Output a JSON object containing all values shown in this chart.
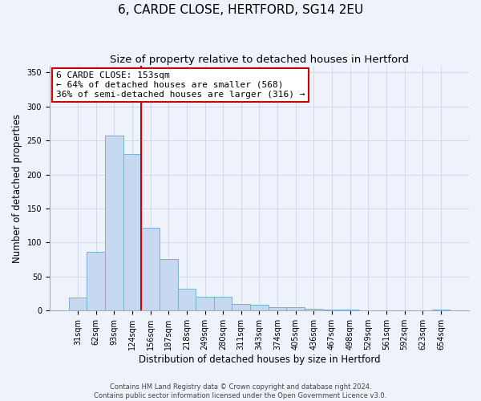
{
  "title": "6, CARDE CLOSE, HERTFORD, SG14 2EU",
  "subtitle": "Size of property relative to detached houses in Hertford",
  "xlabel": "Distribution of detached houses by size in Hertford",
  "ylabel": "Number of detached properties",
  "categories": [
    "31sqm",
    "62sqm",
    "93sqm",
    "124sqm",
    "156sqm",
    "187sqm",
    "218sqm",
    "249sqm",
    "280sqm",
    "311sqm",
    "343sqm",
    "374sqm",
    "405sqm",
    "436sqm",
    "467sqm",
    "498sqm",
    "529sqm",
    "561sqm",
    "592sqm",
    "623sqm",
    "654sqm"
  ],
  "values": [
    19,
    86,
    257,
    230,
    122,
    76,
    32,
    20,
    20,
    10,
    9,
    5,
    5,
    3,
    2,
    2,
    0,
    0,
    0,
    0,
    2
  ],
  "bar_color": "#c6d9f0",
  "bar_edge_color": "#7bafd4",
  "vline_color": "#cc0000",
  "annotation_title": "6 CARDE CLOSE: 153sqm",
  "annotation_line1": "← 64% of detached houses are smaller (568)",
  "annotation_line2": "36% of semi-detached houses are larger (316) →",
  "annotation_box_facecolor": "#ffffff",
  "annotation_box_edgecolor": "#cc0000",
  "ylim": [
    0,
    360
  ],
  "yticks": [
    0,
    50,
    100,
    150,
    200,
    250,
    300,
    350
  ],
  "footnote1": "Contains HM Land Registry data © Crown copyright and database right 2024.",
  "footnote2": "Contains public sector information licensed under the Open Government Licence v3.0.",
  "bg_color": "#eef2fb",
  "grid_color": "#c5cfe8",
  "title_fontsize": 11,
  "subtitle_fontsize": 9.5,
  "tick_fontsize": 7,
  "label_fontsize": 8.5,
  "annot_fontsize": 8,
  "footnote_fontsize": 6
}
